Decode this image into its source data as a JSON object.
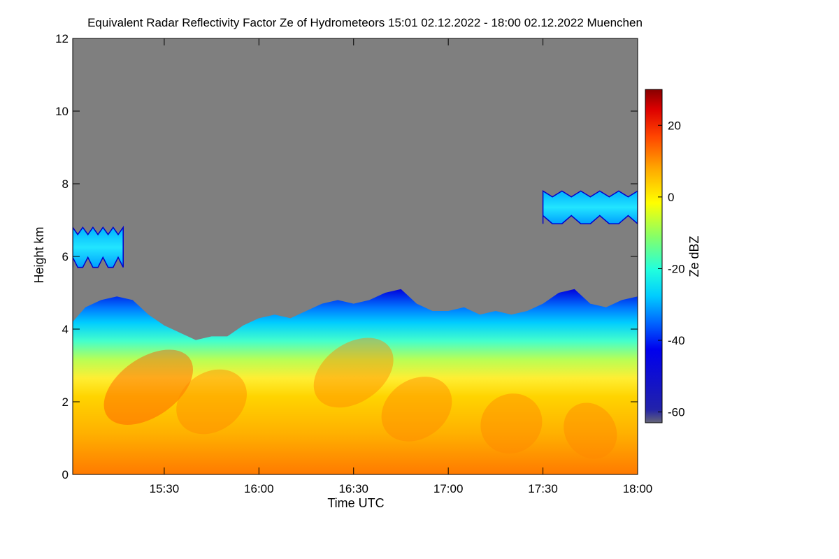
{
  "chart_data": {
    "type": "heatmap",
    "title": "Equivalent Radar Reflectivity Factor Ze of Hydrometeors   15:01 02.12.2022 - 18:00 02.12.2022 Muenchen",
    "xlabel": "Time UTC",
    "ylabel": "Height km",
    "x_range_minutes_utc": [
      901,
      1080
    ],
    "x_ticks": [
      {
        "label": "15:30",
        "minutes": 930
      },
      {
        "label": "16:00",
        "minutes": 960
      },
      {
        "label": "16:30",
        "minutes": 990
      },
      {
        "label": "17:00",
        "minutes": 1020
      },
      {
        "label": "17:30",
        "minutes": 1050
      },
      {
        "label": "18:00",
        "minutes": 1080
      }
    ],
    "ylim": [
      0,
      12
    ],
    "y_ticks": [
      {
        "label": "0",
        "value": 0
      },
      {
        "label": "2",
        "value": 2
      },
      {
        "label": "4",
        "value": 4
      },
      {
        "label": "6",
        "value": 6
      },
      {
        "label": "8",
        "value": 8
      },
      {
        "label": "10",
        "value": 10
      },
      {
        "label": "12",
        "value": 12
      }
    ],
    "colorbar": {
      "label": "Ze dBZ",
      "range": [
        -63,
        30
      ],
      "ticks": [
        {
          "label": "20",
          "value": 20
        },
        {
          "label": "0",
          "value": 0
        },
        {
          "label": "-20",
          "value": -20
        },
        {
          "label": "-40",
          "value": -40
        },
        {
          "label": "-60",
          "value": -60
        }
      ],
      "colormap": [
        "#666677",
        "#0000cc",
        "#0044ff",
        "#00ccff",
        "#33ffcc",
        "#aaff33",
        "#ffff00",
        "#ffaa00",
        "#ff4400",
        "#dd0000",
        "#880000"
      ]
    },
    "no_signal_color": "#7f7f7f",
    "main_cloud_top_km": [
      {
        "minutes": 901,
        "top": 4.2
      },
      {
        "minutes": 905,
        "top": 4.6
      },
      {
        "minutes": 910,
        "top": 4.8
      },
      {
        "minutes": 915,
        "top": 4.9
      },
      {
        "minutes": 920,
        "top": 4.8
      },
      {
        "minutes": 925,
        "top": 4.4
      },
      {
        "minutes": 930,
        "top": 4.1
      },
      {
        "minutes": 935,
        "top": 3.9
      },
      {
        "minutes": 940,
        "top": 3.7
      },
      {
        "minutes": 945,
        "top": 3.8
      },
      {
        "minutes": 950,
        "top": 3.8
      },
      {
        "minutes": 955,
        "top": 4.1
      },
      {
        "minutes": 960,
        "top": 4.3
      },
      {
        "minutes": 965,
        "top": 4.4
      },
      {
        "minutes": 970,
        "top": 4.3
      },
      {
        "minutes": 975,
        "top": 4.5
      },
      {
        "minutes": 980,
        "top": 4.7
      },
      {
        "minutes": 985,
        "top": 4.8
      },
      {
        "minutes": 990,
        "top": 4.7
      },
      {
        "minutes": 995,
        "top": 4.8
      },
      {
        "minutes": 1000,
        "top": 5.0
      },
      {
        "minutes": 1005,
        "top": 5.1
      },
      {
        "minutes": 1010,
        "top": 4.7
      },
      {
        "minutes": 1015,
        "top": 4.5
      },
      {
        "minutes": 1020,
        "top": 4.5
      },
      {
        "minutes": 1025,
        "top": 4.6
      },
      {
        "minutes": 1030,
        "top": 4.4
      },
      {
        "minutes": 1035,
        "top": 4.5
      },
      {
        "minutes": 1040,
        "top": 4.4
      },
      {
        "minutes": 1045,
        "top": 4.5
      },
      {
        "minutes": 1050,
        "top": 4.7
      },
      {
        "minutes": 1055,
        "top": 5.0
      },
      {
        "minutes": 1060,
        "top": 5.1
      },
      {
        "minutes": 1065,
        "top": 4.7
      },
      {
        "minutes": 1070,
        "top": 4.6
      },
      {
        "minutes": 1075,
        "top": 4.8
      },
      {
        "minutes": 1080,
        "top": 4.9
      }
    ],
    "upper_cloud_layers": [
      {
        "name": "early-cirrus",
        "minutes_start": 901,
        "minutes_end": 917,
        "base_km": 5.7,
        "top_km": 6.8,
        "ze_dbz": -22
      },
      {
        "name": "late-cirrus",
        "minutes_start": 1050,
        "minutes_end": 1080,
        "base_km": 6.9,
        "top_km": 7.8,
        "ze_dbz": -22
      }
    ],
    "reflectivity_profile_dbz": [
      {
        "height_km": 0.0,
        "ze": 12
      },
      {
        "height_km": 1.0,
        "ze": 8
      },
      {
        "height_km": 2.0,
        "ze": 8
      },
      {
        "height_km": 2.6,
        "ze": 6
      },
      {
        "height_km": 3.0,
        "ze": -5
      },
      {
        "height_km": 3.5,
        "ze": -18
      },
      {
        "height_km": 4.0,
        "ze": -28
      },
      {
        "height_km": 4.5,
        "ze": -40
      }
    ]
  }
}
